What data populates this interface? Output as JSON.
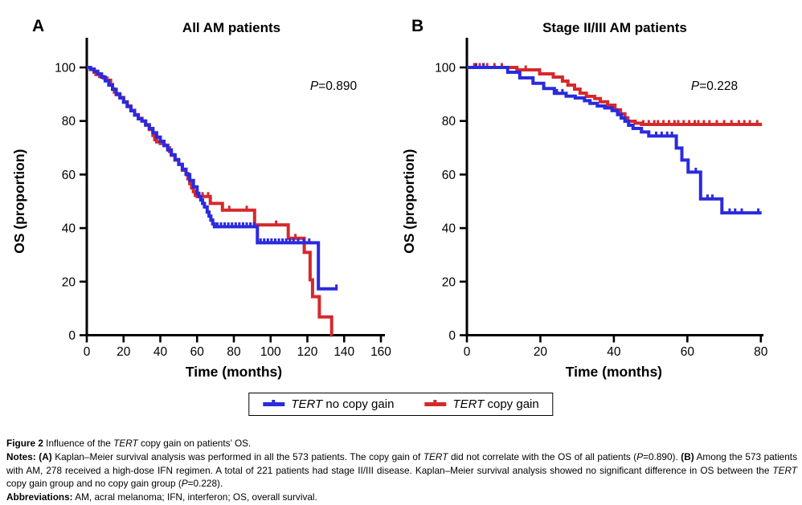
{
  "chart_data": [
    {
      "type": "line",
      "subtype": "kaplan-meier-step",
      "panel": "A",
      "title": "All AM patients",
      "p_label": {
        "italic": "P",
        "rest": "=0.890"
      },
      "xlabel": "Time (months)",
      "ylabel": "OS (proportion)",
      "xlim": [
        0,
        160
      ],
      "ylim": [
        0,
        100
      ],
      "xticks": [
        0,
        20,
        40,
        60,
        80,
        100,
        120,
        140,
        160
      ],
      "yticks": [
        0,
        20,
        40,
        60,
        80,
        100
      ],
      "grid": false,
      "legend_position": "shared-bottom",
      "series": [
        {
          "name": "TERT no copy gain",
          "color": "#2a2ade",
          "x_end": 136.5,
          "steps": [
            [
              0,
              100
            ],
            [
              2,
              99.4
            ],
            [
              4,
              98.6
            ],
            [
              6,
              97.6
            ],
            [
              8,
              96.4
            ],
            [
              10,
              95
            ],
            [
              12,
              93.4
            ],
            [
              14,
              91.8
            ],
            [
              16,
              90.2
            ],
            [
              18,
              88.6
            ],
            [
              20,
              87
            ],
            [
              22,
              85.4
            ],
            [
              24,
              83.8
            ],
            [
              26,
              82.2
            ],
            [
              28,
              80.8
            ],
            [
              30,
              80
            ],
            [
              32,
              78.6
            ],
            [
              34,
              77.2
            ],
            [
              36,
              75.6
            ],
            [
              38,
              74
            ],
            [
              40,
              72.4
            ],
            [
              42,
              70.8
            ],
            [
              44,
              69.2
            ],
            [
              46,
              67.4
            ],
            [
              48,
              65.6
            ],
            [
              50,
              63.8
            ],
            [
              52,
              62
            ],
            [
              54,
              60
            ],
            [
              56,
              57.8
            ],
            [
              58,
              55.4
            ],
            [
              60,
              53
            ],
            [
              61,
              51.8
            ],
            [
              62,
              50.5
            ],
            [
              63,
              49.2
            ],
            [
              64,
              47.9
            ],
            [
              65.5,
              46
            ],
            [
              66.5,
              44.5
            ],
            [
              67.5,
              43
            ],
            [
              68.5,
              41.6
            ],
            [
              69.4,
              40.5
            ],
            [
              92.8,
              34.5
            ],
            [
              126,
              17.3
            ]
          ],
          "censor_ticks": [
            71,
            73,
            75,
            77,
            79,
            81,
            83,
            85,
            87,
            89,
            91,
            94.5,
            96.5,
            98.5,
            100.5,
            102.5,
            104.5,
            106.5,
            108.5,
            110.5,
            112.5,
            115,
            118,
            121,
            135.8
          ]
        },
        {
          "name": "TERT copy gain",
          "color": "#d5292c",
          "x_end": 133.4,
          "steps": [
            [
              0,
              100
            ],
            [
              2,
              99.2
            ],
            [
              4,
              98.2
            ],
            [
              5,
              97.4
            ],
            [
              7,
              96.6
            ],
            [
              9,
              96
            ],
            [
              11,
              95.2
            ],
            [
              13,
              93.6
            ],
            [
              14,
              92
            ],
            [
              15,
              90.8
            ],
            [
              16,
              89.8
            ],
            [
              18,
              88.8
            ],
            [
              20,
              87.2
            ],
            [
              22,
              85.6
            ],
            [
              24,
              84
            ],
            [
              26,
              82.4
            ],
            [
              28,
              81
            ],
            [
              30,
              80
            ],
            [
              32,
              78.4
            ],
            [
              34,
              76.8
            ],
            [
              36,
              74.6
            ],
            [
              37,
              73
            ],
            [
              38,
              72.2
            ],
            [
              40,
              71.6
            ],
            [
              42,
              71
            ],
            [
              44,
              70
            ],
            [
              45,
              68.6
            ],
            [
              46,
              67.2
            ],
            [
              48,
              65.4
            ],
            [
              50,
              63.8
            ],
            [
              52,
              61.6
            ],
            [
              54,
              60.4
            ],
            [
              55,
              58.4
            ],
            [
              56,
              56.6
            ],
            [
              57,
              55
            ],
            [
              58,
              53.6
            ],
            [
              59,
              52.2
            ],
            [
              60,
              51.8
            ],
            [
              67.2,
              49.2
            ],
            [
              73.8,
              46.7
            ],
            [
              91.3,
              41.2
            ],
            [
              109.6,
              36.2
            ],
            [
              118.3,
              30.9
            ],
            [
              121.5,
              20.7
            ],
            [
              122.8,
              14.4
            ],
            [
              126.5,
              6.8
            ],
            [
              133.2,
              0
            ]
          ],
          "censor_ticks": [
            63,
            66,
            77.5,
            87,
            103,
            113.5
          ]
        }
      ]
    },
    {
      "type": "line",
      "subtype": "kaplan-meier-step",
      "panel": "B",
      "title": "Stage II/III AM patients",
      "p_label": {
        "italic": "P",
        "rest": "=0.228"
      },
      "xlabel": "Time (months)",
      "ylabel": "OS (proportion)",
      "xlim": [
        0,
        80
      ],
      "ylim": [
        0,
        100
      ],
      "xticks": [
        0,
        20,
        40,
        60,
        80
      ],
      "yticks": [
        0,
        20,
        40,
        60,
        80,
        100
      ],
      "grid": false,
      "legend_position": "shared-bottom",
      "series": [
        {
          "name": "TERT no copy gain",
          "color": "#2a2ade",
          "x_end": 80.2,
          "steps": [
            [
              0,
              100
            ],
            [
              11.1,
              98.2
            ],
            [
              14.4,
              96.1
            ],
            [
              18,
              94.1
            ],
            [
              20.9,
              92.1
            ],
            [
              23.8,
              90.3
            ],
            [
              27,
              89.3
            ],
            [
              29.5,
              88.6
            ],
            [
              32,
              87.6
            ],
            [
              33.5,
              86.6
            ],
            [
              35.5,
              85.6
            ],
            [
              37.5,
              84.9
            ],
            [
              39.5,
              83.9
            ],
            [
              41,
              82.4
            ],
            [
              42,
              81.1
            ],
            [
              43,
              79.9
            ],
            [
              44,
              78.4
            ],
            [
              45.2,
              77.2
            ],
            [
              47.5,
              75.9
            ],
            [
              49.5,
              74.4
            ],
            [
              57,
              69.9
            ],
            [
              58.5,
              65.4
            ],
            [
              60.2,
              60.9
            ],
            [
              63.6,
              50.9
            ],
            [
              69.4,
              45.7
            ]
          ],
          "censor_ticks": [
            2.5,
            4.5,
            24.5,
            26,
            51.5,
            53,
            54.5,
            55.8,
            62.3,
            65.5,
            66.8,
            71.5,
            73,
            74.8,
            79.3
          ]
        },
        {
          "name": "TERT copy gain",
          "color": "#d5292c",
          "x_end": 80.3,
          "steps": [
            [
              0,
              100
            ],
            [
              13.6,
              99.1
            ],
            [
              19.8,
              97.6
            ],
            [
              23.5,
              96.4
            ],
            [
              26,
              94.9
            ],
            [
              27.5,
              93.4
            ],
            [
              29.3,
              91.9
            ],
            [
              30.8,
              90.4
            ],
            [
              32.5,
              89.2
            ],
            [
              34.8,
              88.4
            ],
            [
              36.3,
              87.2
            ],
            [
              38.3,
              85.9
            ],
            [
              40.3,
              84.2
            ],
            [
              41.8,
              82.7
            ],
            [
              43,
              81.2
            ],
            [
              43.8,
              79.9
            ],
            [
              45.8,
              79.2
            ],
            [
              47.5,
              78.7
            ]
          ],
          "censor_ticks": [
            2,
            3.5,
            5.5,
            7.5,
            9.5,
            16,
            48,
            49.5,
            51,
            52,
            53.5,
            55,
            56.5,
            57.5,
            59,
            60.5,
            62,
            63,
            64.5,
            66,
            68,
            70,
            72,
            74,
            75.5,
            77,
            79
          ]
        }
      ]
    }
  ],
  "legend": {
    "entries": [
      {
        "gene": "TERT",
        "rest": " no copy gain",
        "color": "#2a2ade"
      },
      {
        "gene": "TERT",
        "rest": " copy gain",
        "color": "#d5292c"
      }
    ]
  },
  "caption": {
    "lines": [
      {
        "justify": false,
        "segments": [
          {
            "t": "Figure 2",
            "b": true
          },
          {
            "t": " Influence of the "
          },
          {
            "t": "TERT",
            "i": true
          },
          {
            "t": " copy gain on patients’ OS."
          }
        ]
      },
      {
        "justify": true,
        "segments": [
          {
            "t": "Notes:",
            "b": true
          },
          {
            "t": " "
          },
          {
            "t": "(A)",
            "b": true
          },
          {
            "t": " Kaplan–Meier survival analysis was performed in all the 573 patients. The copy gain of "
          },
          {
            "t": "TERT",
            "i": true
          },
          {
            "t": " did not correlate with the OS of all patients ("
          },
          {
            "t": "P",
            "i": true
          },
          {
            "t": "=0.890). "
          },
          {
            "t": "(B)",
            "b": true
          },
          {
            "t": " Among the 573 patients with AM, 278 received a high-dose IFN regimen. A total of 221 patients had stage II/III disease. Kaplan–Meier survival analysis showed no significant difference in OS between the "
          },
          {
            "t": "TERT",
            "i": true
          },
          {
            "t": " copy gain group and no copy gain group ("
          },
          {
            "t": "P",
            "i": true
          },
          {
            "t": "=0.228)."
          }
        ]
      },
      {
        "justify": false,
        "segments": [
          {
            "t": "Abbreviations:",
            "b": true
          },
          {
            "t": " AM, acral melanoma; IFN, interferon; OS, overall survival."
          }
        ]
      }
    ]
  }
}
